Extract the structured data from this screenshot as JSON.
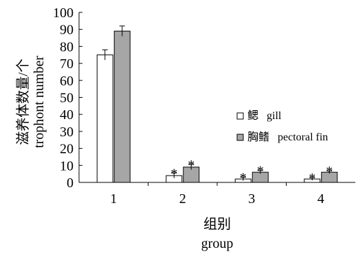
{
  "chart_data": {
    "type": "bar",
    "categories": [
      "1",
      "2",
      "3",
      "4"
    ],
    "series": [
      {
        "name": "鳃   gill",
        "values": [
          75,
          4,
          2,
          2
        ],
        "errors": [
          3,
          1.5,
          1,
          0.8
        ],
        "color": "#ffffff"
      },
      {
        "name": "胸鳍   pectoral fin",
        "values": [
          89,
          9,
          6,
          6
        ],
        "errors": [
          3,
          1.5,
          1,
          0.8
        ],
        "color": "#a6a6a6"
      }
    ],
    "significance_marks": [
      [
        "",
        "",
        ""
      ],
      [
        "*",
        "*"
      ],
      [
        "*",
        "*"
      ],
      [
        "*",
        "*"
      ]
    ],
    "ylim": [
      0,
      100
    ],
    "yticks": [
      "0",
      "10",
      "20",
      "30",
      "40",
      "50",
      "60",
      "70",
      "80",
      "90",
      "100"
    ],
    "ylabel_cn": "滋养体数量/个",
    "ylabel_en": "trophont number",
    "xlabel_cn": "组别",
    "xlabel_en": "group",
    "legend_position": "right"
  }
}
